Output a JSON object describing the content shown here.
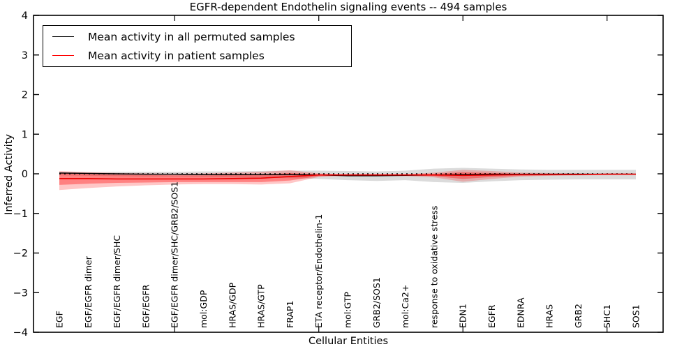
{
  "figure": {
    "title": "EGFR-dependent Endothelin signaling events -- 494 samples",
    "xlabel": "Cellular Entities",
    "ylabel": "Inferred Activity"
  },
  "legend": {
    "entries": [
      {
        "label": "Mean activity in all permuted samples",
        "color": "#000000"
      },
      {
        "label": "Mean activity in patient samples",
        "color": "#ff0000"
      }
    ]
  },
  "chart_data": {
    "type": "line",
    "title": "EGFR-dependent Endothelin signaling events -- 494 samples",
    "xlabel": "Cellular Entities",
    "ylabel": "Inferred Activity",
    "ylim": [
      -4,
      4
    ],
    "yticks": [
      -4,
      -3,
      -2,
      -1,
      0,
      1,
      2,
      3,
      4
    ],
    "grid": false,
    "legend_position": "upper left",
    "zero_reference_line": {
      "y": 0,
      "style": "dotted",
      "color": "#000000"
    },
    "categories": [
      "EGF",
      "EGF/EGFR dimer",
      "EGF/EGFR dimer/SHC",
      "EGF/EGFR",
      "EGF/EGFR dimer/SHC/GRB2/SOS1",
      "mol:GDP",
      "HRAS/GDP",
      "HRAS/GTP",
      "FRAP1",
      "ETA receptor/Endothelin-1",
      "mol:GTP",
      "GRB2/SOS1",
      "mol:Ca2+",
      "response to oxidative stress",
      "EDN1",
      "EGFR",
      "EDNRA",
      "HRAS",
      "GRB2",
      "SHC1",
      "SOS1"
    ],
    "xticks_minor_at_indices": [
      4,
      9,
      14,
      19
    ],
    "series": [
      {
        "name": "Mean activity in all permuted samples",
        "color": "#000000",
        "style": "solid",
        "values": [
          0.02,
          0.01,
          0.0,
          -0.01,
          -0.01,
          -0.02,
          -0.02,
          -0.02,
          -0.02,
          -0.03,
          -0.05,
          -0.05,
          -0.04,
          -0.03,
          -0.02,
          -0.01,
          -0.01,
          -0.01,
          -0.01,
          -0.01,
          -0.01
        ]
      },
      {
        "name": "Mean activity in patient samples",
        "color": "#ee0000",
        "style": "solid",
        "values": [
          -0.12,
          -0.12,
          -0.13,
          -0.13,
          -0.13,
          -0.13,
          -0.12,
          -0.11,
          -0.07,
          -0.03,
          -0.03,
          -0.03,
          -0.03,
          -0.03,
          -0.04,
          -0.03,
          -0.02,
          -0.02,
          -0.02,
          -0.01,
          -0.01
        ]
      }
    ],
    "bands": [
      {
        "name": "permuted samples spread",
        "color": "#888888",
        "opacity": 0.3,
        "upper": [
          0.04,
          0.04,
          0.05,
          0.05,
          0.05,
          0.06,
          0.06,
          0.07,
          0.08,
          0.08,
          0.07,
          0.06,
          0.08,
          0.13,
          0.15,
          0.13,
          0.11,
          0.1,
          0.1,
          0.1,
          0.1
        ],
        "lower": [
          -0.04,
          -0.05,
          -0.06,
          -0.07,
          -0.07,
          -0.08,
          -0.09,
          -0.1,
          -0.11,
          -0.13,
          -0.16,
          -0.18,
          -0.16,
          -0.21,
          -0.23,
          -0.19,
          -0.16,
          -0.15,
          -0.14,
          -0.14,
          -0.14
        ]
      },
      {
        "name": "patient samples spread outer",
        "color": "#ff0000",
        "opacity": 0.22,
        "upper": [
          0.07,
          0.04,
          0.02,
          0.01,
          0.0,
          0.01,
          0.03,
          0.05,
          0.09,
          0.01,
          -0.01,
          -0.01,
          -0.01,
          0.03,
          0.1,
          0.07,
          0.03,
          0.02,
          0.01,
          0.0,
          0.0
        ],
        "lower": [
          -0.41,
          -0.36,
          -0.32,
          -0.29,
          -0.27,
          -0.26,
          -0.26,
          -0.27,
          -0.24,
          -0.08,
          -0.05,
          -0.05,
          -0.06,
          -0.09,
          -0.2,
          -0.13,
          -0.07,
          -0.05,
          -0.04,
          -0.03,
          -0.02
        ]
      },
      {
        "name": "patient samples spread inner",
        "color": "#ff0000",
        "opacity": 0.35,
        "upper": [
          0.02,
          0.0,
          -0.02,
          -0.03,
          -0.04,
          -0.04,
          -0.03,
          -0.02,
          0.02,
          -0.01,
          -0.02,
          -0.02,
          -0.02,
          0.0,
          0.04,
          0.02,
          0.0,
          -0.01,
          -0.01,
          -0.01,
          -0.01
        ],
        "lower": [
          -0.28,
          -0.25,
          -0.23,
          -0.22,
          -0.21,
          -0.21,
          -0.21,
          -0.21,
          -0.17,
          -0.06,
          -0.04,
          -0.04,
          -0.04,
          -0.06,
          -0.13,
          -0.08,
          -0.05,
          -0.04,
          -0.03,
          -0.02,
          -0.02
        ]
      }
    ]
  }
}
